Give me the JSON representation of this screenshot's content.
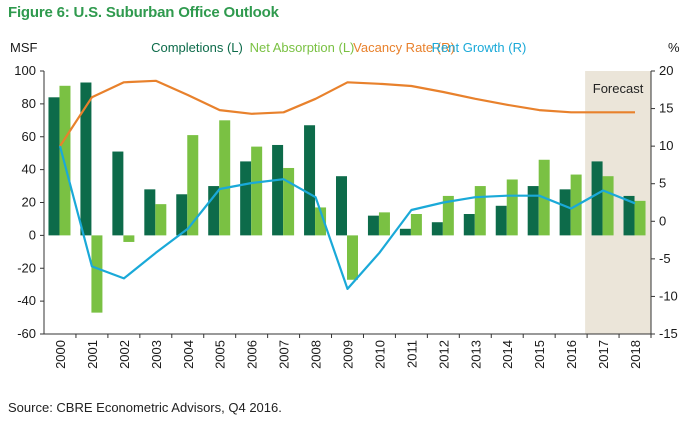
{
  "figure": {
    "title": "Figure 6: U.S. Suburban Office Outlook",
    "source": "Source: CBRE Econometric Advisors, Q4 2016."
  },
  "colors": {
    "completions": "#0d6b4a",
    "net_absorption": "#7ac143",
    "vacancy_rate": "#e8812c",
    "rent_growth": "#1aa9d8",
    "forecast_shade": "#ebe5d9",
    "title": "#2f9a4e"
  },
  "chart_data": {
    "type": "bar",
    "categories": [
      "2000",
      "2001",
      "2002",
      "2003",
      "2004",
      "2005",
      "2006",
      "2007",
      "2008",
      "2009",
      "2010",
      "2011",
      "2012",
      "2013",
      "2014",
      "2015",
      "2016",
      "2017",
      "2018"
    ],
    "left_axis": {
      "unit_label": "MSF",
      "ylim": [
        -60,
        100
      ],
      "ticks": [
        -60,
        -40,
        -20,
        0,
        20,
        40,
        60,
        80,
        100
      ]
    },
    "right_axis": {
      "unit_label": "%",
      "ylim": [
        -15,
        20
      ],
      "ticks": [
        -15,
        -10,
        -5,
        0,
        5,
        10,
        15,
        20
      ]
    },
    "series": [
      {
        "name": "Completions (L)",
        "type": "bar",
        "axis": "left",
        "values": [
          84,
          93,
          51,
          28,
          25,
          30,
          45,
          55,
          67,
          36,
          12,
          4,
          8,
          13,
          18,
          30,
          28,
          45,
          24
        ]
      },
      {
        "name": "Net Absorption (L)",
        "type": "bar",
        "axis": "left",
        "values": [
          91,
          -47,
          -4,
          19,
          61,
          70,
          54,
          41,
          17,
          -27,
          14,
          13,
          24,
          30,
          34,
          46,
          37,
          36,
          21
        ]
      },
      {
        "name": "Vacancy Rate (R)",
        "type": "line",
        "axis": "right",
        "values": [
          10,
          16.5,
          18.5,
          18.7,
          16.8,
          14.8,
          14.3,
          14.5,
          16.3,
          18.5,
          18.3,
          18,
          17.2,
          16.3,
          15.5,
          14.8,
          14.5,
          14.5,
          14.5
        ]
      },
      {
        "name": "Rent Growth (R)",
        "type": "line",
        "axis": "right",
        "values": [
          10,
          -6,
          -7.6,
          -4.2,
          -1,
          4.3,
          5.1,
          5.6,
          3.2,
          -9,
          -4.2,
          1.5,
          2.5,
          3.2,
          3.4,
          3.4,
          1.7,
          4.1,
          2.4
        ]
      }
    ],
    "annotations": [
      {
        "text": "Forecast",
        "categories": [
          "2017",
          "2018"
        ]
      }
    ],
    "grid": false,
    "legend_placement": "top"
  }
}
